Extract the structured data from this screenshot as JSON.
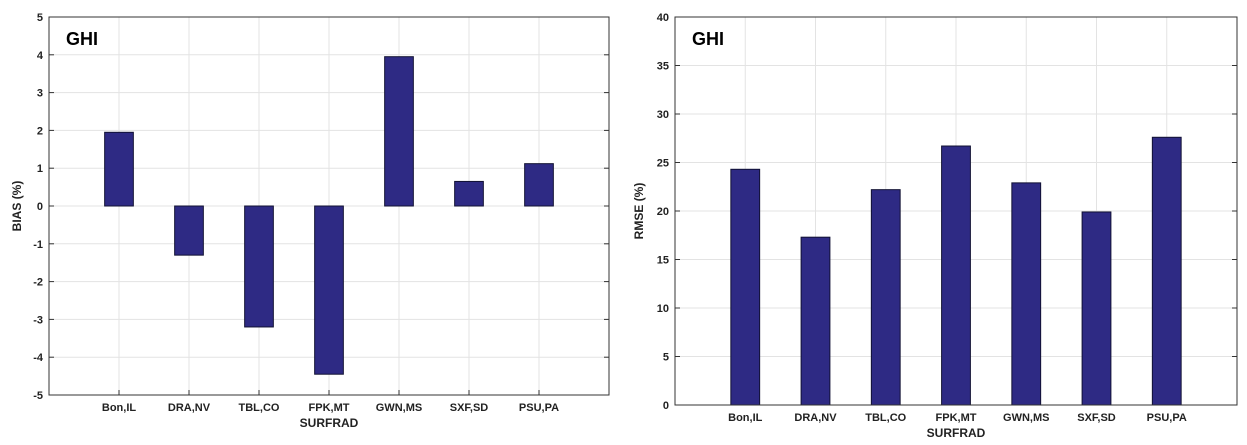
{
  "colors": {
    "bar_fill": "#2e2a84",
    "bar_stroke": "#111133",
    "grid": "#e3e3e3",
    "axis": "#333333"
  },
  "chart_data": [
    {
      "type": "bar",
      "title": "GHI",
      "xlabel": "SURFRAD",
      "ylabel": "BIAS (%)",
      "categories": [
        "Bon,IL",
        "DRA,NV",
        "TBL,CO",
        "FPK,MT",
        "GWN,MS",
        "SXF,SD",
        "PSU,PA"
      ],
      "values": [
        1.95,
        -1.3,
        -3.2,
        -4.45,
        3.95,
        0.65,
        1.12
      ],
      "ylim": [
        -5,
        5
      ],
      "yticks": [
        "5",
        "4",
        "3",
        "2",
        "1",
        "0",
        "-1",
        "-2",
        "-3",
        "-4",
        "-5"
      ],
      "grid": true
    },
    {
      "type": "bar",
      "title": "GHI",
      "xlabel": "SURFRAD",
      "ylabel": "RMSE (%)",
      "categories": [
        "Bon,IL",
        "DRA,NV",
        "TBL,CO",
        "FPK,MT",
        "GWN,MS",
        "SXF,SD",
        "PSU,PA"
      ],
      "values": [
        24.3,
        17.3,
        22.2,
        26.7,
        22.9,
        19.9,
        27.6
      ],
      "ylim": [
        0,
        40
      ],
      "yticks": [
        "40",
        "35",
        "30",
        "25",
        "20",
        "15",
        "10",
        "5",
        "0"
      ],
      "grid": true
    }
  ]
}
